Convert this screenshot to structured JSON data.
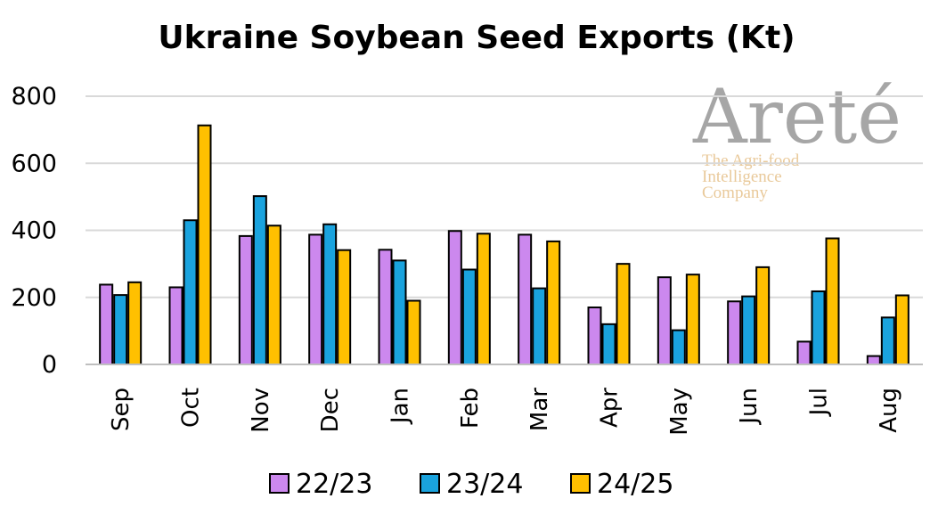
{
  "chart_data": {
    "type": "bar",
    "title": "Ukraine Soybean Seed Exports (Kt)",
    "xlabel": "",
    "ylabel": "",
    "ylim": [
      0,
      800
    ],
    "yticks": [
      0,
      200,
      400,
      600,
      800
    ],
    "grid": true,
    "legend_position": "bottom",
    "categories": [
      "Sep",
      "Oct",
      "Nov",
      "Dec",
      "Jan",
      "Feb",
      "Mar",
      "Apr",
      "May",
      "Jun",
      "Jul",
      "Aug"
    ],
    "series": [
      {
        "name": "22/23",
        "color": "#cc88ee",
        "values": [
          238,
          230,
          383,
          387,
          342,
          398,
          387,
          170,
          260,
          188,
          68,
          25
        ]
      },
      {
        "name": "23/24",
        "color": "#1aa3de",
        "values": [
          207,
          430,
          502,
          418,
          310,
          283,
          227,
          120,
          102,
          203,
          218,
          140
        ]
      },
      {
        "name": "24/25",
        "color": "#ffc000",
        "values": [
          245,
          713,
          414,
          341,
          190,
          390,
          367,
          300,
          268,
          290,
          376,
          206
        ]
      }
    ]
  },
  "watermark": {
    "name": "Areté",
    "tagline": [
      "The Agri-food",
      "Intelligence",
      "Company"
    ]
  }
}
